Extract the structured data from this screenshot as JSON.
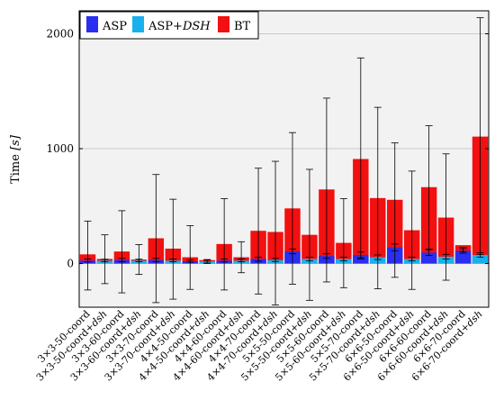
{
  "chart_data": {
    "type": "bar",
    "stacked": true,
    "ylabel_main": "Time",
    "ylabel_unit": "[s]",
    "ylim": [
      -380,
      2200
    ],
    "yticks": [
      0,
      1000,
      2000
    ],
    "grid": "horizontal",
    "legend_position": "top-left",
    "colors": {
      "ASP": "#2a2ef0",
      "ASP+DSH": "#19b0ee",
      "BT": "#f21010",
      "background": "#f2f2f2",
      "grid": "#bdbdbd"
    },
    "categories": [
      {
        "text": "3×3-50-coord",
        "dsh": ""
      },
      {
        "text": "3×3-50-coord+",
        "dsh": "dsh"
      },
      {
        "text": "3×3-60-coord",
        "dsh": ""
      },
      {
        "text": "3×3-60-coord+",
        "dsh": "dsh"
      },
      {
        "text": "3×3-70-coord",
        "dsh": ""
      },
      {
        "text": "3×3-70-coord+",
        "dsh": "dsh"
      },
      {
        "text": "4×4-50-coord",
        "dsh": ""
      },
      {
        "text": "4×4-50-coord+",
        "dsh": "dsh"
      },
      {
        "text": "4×4-60-coord",
        "dsh": ""
      },
      {
        "text": "4×4-60-coord+",
        "dsh": "dsh"
      },
      {
        "text": "4×4-70-coord",
        "dsh": ""
      },
      {
        "text": "4×4-70-coord+",
        "dsh": "dsh"
      },
      {
        "text": "5×5-50-coord",
        "dsh": ""
      },
      {
        "text": "5×5-50-coord+",
        "dsh": "dsh"
      },
      {
        "text": "5×5-60-coord",
        "dsh": ""
      },
      {
        "text": "5×5-60-coord+",
        "dsh": "dsh"
      },
      {
        "text": "5×5-70-coord",
        "dsh": ""
      },
      {
        "text": "5×5-70-coord+",
        "dsh": "dsh"
      },
      {
        "text": "6×6-50-coord",
        "dsh": ""
      },
      {
        "text": "6×6-50-coord+",
        "dsh": "dsh"
      },
      {
        "text": "6×6-60-coord",
        "dsh": ""
      },
      {
        "text": "6×6-60-coord+",
        "dsh": "dsh"
      },
      {
        "text": "6×6-70-coord",
        "dsh": ""
      },
      {
        "text": "6×6-70-coord+",
        "dsh": "dsh"
      }
    ],
    "legend": [
      {
        "key": "ASP",
        "text": "ASP",
        "em": ""
      },
      {
        "key": "ASP+DSH",
        "text": "ASP+",
        "em": "DSH"
      },
      {
        "key": "BT",
        "text": "BT",
        "em": ""
      }
    ],
    "bars": [
      {
        "base_series": "ASP",
        "base": 25,
        "bt": 80,
        "bt_err": [
          -230,
          370
        ],
        "asp_err": [
          15,
          40
        ]
      },
      {
        "base_series": "ASP+DSH",
        "base": 25,
        "bt": 40,
        "bt_err": [
          -175,
          250
        ],
        "asp_err": [
          15,
          38
        ]
      },
      {
        "base_series": "ASP",
        "base": 30,
        "bt": 105,
        "bt_err": [
          -255,
          460
        ],
        "asp_err": [
          18,
          45
        ]
      },
      {
        "base_series": "ASP+DSH",
        "base": 25,
        "bt": 35,
        "bt_err": [
          -95,
          165
        ],
        "asp_err": [
          15,
          38
        ]
      },
      {
        "base_series": "ASP",
        "base": 30,
        "bt": 220,
        "bt_err": [
          -340,
          775
        ],
        "asp_err": [
          18,
          45
        ]
      },
      {
        "base_series": "ASP+DSH",
        "base": 25,
        "bt": 130,
        "bt_err": [
          -310,
          560
        ],
        "asp_err": [
          15,
          40
        ]
      },
      {
        "base_series": "ASP",
        "base": 20,
        "bt": 55,
        "bt_err": [
          -225,
          330
        ],
        "asp_err": [
          12,
          32
        ]
      },
      {
        "base_series": "ASP+DSH",
        "base": 20,
        "bt": 30,
        "bt_err": [
          0,
          35
        ],
        "asp_err": [
          12,
          30
        ]
      },
      {
        "base_series": "ASP",
        "base": 25,
        "bt": 170,
        "bt_err": [
          -230,
          565
        ],
        "asp_err": [
          15,
          40
        ]
      },
      {
        "base_series": "ASP+DSH",
        "base": 25,
        "bt": 55,
        "bt_err": [
          -80,
          190
        ],
        "asp_err": [
          15,
          40
        ]
      },
      {
        "base_series": "ASP",
        "base": 40,
        "bt": 285,
        "bt_err": [
          -265,
          830
        ],
        "asp_err": [
          20,
          55
        ]
      },
      {
        "base_series": "ASP+DSH",
        "base": 30,
        "bt": 275,
        "bt_err": [
          -360,
          890
        ],
        "asp_err": [
          18,
          45
        ]
      },
      {
        "base_series": "ASP",
        "base": 105,
        "bt": 480,
        "bt_err": [
          -180,
          1140
        ],
        "asp_err": [
          85,
          125
        ]
      },
      {
        "base_series": "ASP+DSH",
        "base": 40,
        "bt": 250,
        "bt_err": [
          -320,
          820
        ],
        "asp_err": [
          25,
          55
        ]
      },
      {
        "base_series": "ASP",
        "base": 65,
        "bt": 645,
        "bt_err": [
          -160,
          1440
        ],
        "asp_err": [
          45,
          85
        ]
      },
      {
        "base_series": "ASP+DSH",
        "base": 40,
        "bt": 180,
        "bt_err": [
          -210,
          565
        ],
        "asp_err": [
          25,
          55
        ]
      },
      {
        "base_series": "ASP",
        "base": 75,
        "bt": 910,
        "bt_err": [
          40,
          1790
        ],
        "asp_err": [
          50,
          100
        ]
      },
      {
        "base_series": "ASP+DSH",
        "base": 55,
        "bt": 570,
        "bt_err": [
          -220,
          1360
        ],
        "asp_err": [
          35,
          75
        ]
      },
      {
        "base_series": "ASP",
        "base": 140,
        "bt": 555,
        "bt_err": [
          -120,
          1050
        ],
        "asp_err": [
          110,
          170
        ]
      },
      {
        "base_series": "ASP+DSH",
        "base": 40,
        "bt": 290,
        "bt_err": [
          -225,
          805
        ],
        "asp_err": [
          25,
          55
        ]
      },
      {
        "base_series": "ASP",
        "base": 95,
        "bt": 665,
        "bt_err": [
          125,
          1200
        ],
        "asp_err": [
          70,
          120
        ]
      },
      {
        "base_series": "ASP+DSH",
        "base": 60,
        "bt": 400,
        "bt_err": [
          -145,
          955
        ],
        "asp_err": [
          40,
          80
        ]
      },
      {
        "base_series": "ASP",
        "base": 110,
        "bt": 160,
        "bt_err": [
          105,
          140
        ],
        "asp_err": [
          90,
          130
        ]
      },
      {
        "base_series": "ASP+DSH",
        "base": 75,
        "bt": 1105,
        "bt_err": [
          80,
          2140
        ],
        "asp_err": [
          55,
          95
        ]
      }
    ]
  }
}
